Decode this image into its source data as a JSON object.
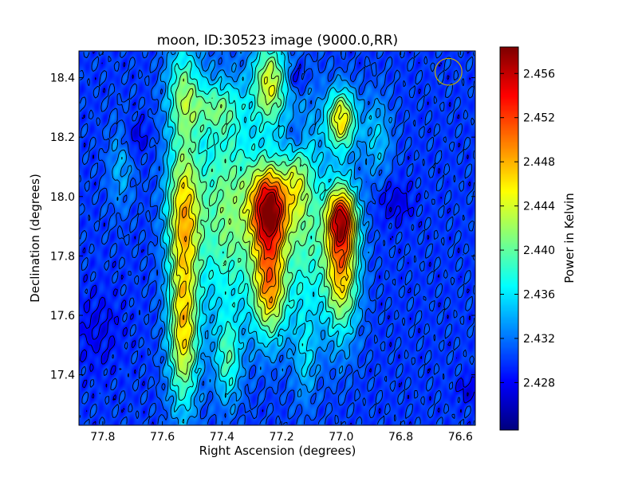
{
  "chart_data": {
    "type": "heatmap",
    "title": "moon, ID:30523 image (9000.0,RR)",
    "xlabel": "Right Ascension (degrees)",
    "ylabel": "Declination (degrees)",
    "colorbar_label": "Power in Kelvin",
    "xlim": [
      77.88,
      76.55
    ],
    "ylim": [
      17.23,
      18.49
    ],
    "x_axis_inverted": true,
    "x_ticks": [
      {
        "value": 77.8,
        "label": "77.8"
      },
      {
        "value": 77.6,
        "label": "77.6"
      },
      {
        "value": 77.4,
        "label": "77.4"
      },
      {
        "value": 77.2,
        "label": "77.2"
      },
      {
        "value": 77.0,
        "label": "77.0"
      },
      {
        "value": 76.8,
        "label": "76.8"
      },
      {
        "value": 76.6,
        "label": "76.6"
      }
    ],
    "y_ticks": [
      {
        "value": 17.4,
        "label": "17.4"
      },
      {
        "value": 17.6,
        "label": "17.6"
      },
      {
        "value": 17.8,
        "label": "17.8"
      },
      {
        "value": 18.0,
        "label": "18.0"
      },
      {
        "value": 18.2,
        "label": "18.2"
      },
      {
        "value": 18.4,
        "label": "18.4"
      }
    ],
    "colorbar": {
      "colormap": "jet",
      "range": [
        2.4237,
        2.4584
      ],
      "ticks": [
        {
          "value": 2.428,
          "label": "2.428"
        },
        {
          "value": 2.432,
          "label": "2.432"
        },
        {
          "value": 2.436,
          "label": "2.436"
        },
        {
          "value": 2.44,
          "label": "2.440"
        },
        {
          "value": 2.444,
          "label": "2.444"
        },
        {
          "value": 2.448,
          "label": "2.448"
        },
        {
          "value": 2.452,
          "label": "2.452"
        },
        {
          "value": 2.456,
          "label": "2.456"
        }
      ]
    },
    "background_value": 2.43,
    "features": [
      {
        "x": 77.24,
        "y": 17.96,
        "sx": 0.045,
        "sy": 0.1,
        "amp": 0.026
      },
      {
        "x": 77.24,
        "y": 17.7,
        "sx": 0.04,
        "sy": 0.12,
        "amp": 0.018
      },
      {
        "x": 77.24,
        "y": 18.38,
        "sx": 0.04,
        "sy": 0.1,
        "amp": 0.014
      },
      {
        "x": 77.0,
        "y": 17.78,
        "sx": 0.04,
        "sy": 0.16,
        "amp": 0.019
      },
      {
        "x": 77.0,
        "y": 17.93,
        "sx": 0.035,
        "sy": 0.07,
        "amp": 0.015
      },
      {
        "x": 77.0,
        "y": 18.26,
        "sx": 0.035,
        "sy": 0.07,
        "amp": 0.016
      },
      {
        "x": 77.53,
        "y": 17.95,
        "sx": 0.04,
        "sy": 0.16,
        "amp": 0.015
      },
      {
        "x": 77.53,
        "y": 17.55,
        "sx": 0.035,
        "sy": 0.18,
        "amp": 0.016
      },
      {
        "x": 77.53,
        "y": 18.35,
        "sx": 0.04,
        "sy": 0.12,
        "amp": 0.01
      },
      {
        "x": 77.38,
        "y": 17.95,
        "sx": 0.08,
        "sy": 0.25,
        "amp": 0.011
      },
      {
        "x": 77.38,
        "y": 17.45,
        "sx": 0.03,
        "sy": 0.1,
        "amp": 0.008
      },
      {
        "x": 77.12,
        "y": 17.9,
        "sx": 0.05,
        "sy": 0.25,
        "amp": 0.009
      },
      {
        "x": 77.12,
        "y": 17.45,
        "sx": 0.025,
        "sy": 0.1,
        "amp": 0.004
      },
      {
        "x": 77.42,
        "y": 18.3,
        "sx": 0.06,
        "sy": 0.06,
        "amp": 0.007
      },
      {
        "x": 77.15,
        "y": 18.05,
        "sx": 0.03,
        "sy": 0.08,
        "amp": 0.006
      },
      {
        "x": 76.88,
        "y": 18.2,
        "sx": 0.035,
        "sy": 0.1,
        "amp": 0.005
      },
      {
        "x": 77.74,
        "y": 18.1,
        "sx": 0.03,
        "sy": 0.1,
        "amp": 0.004
      },
      {
        "x": 77.82,
        "y": 17.55,
        "sx": 0.06,
        "sy": 0.1,
        "amp": -0.002
      },
      {
        "x": 76.82,
        "y": 17.98,
        "sx": 0.04,
        "sy": 0.05,
        "amp": -0.003
      },
      {
        "x": 77.15,
        "y": 18.4,
        "sx": 0.02,
        "sy": 0.03,
        "amp": -0.004
      },
      {
        "x": 77.15,
        "y": 18.2,
        "sx": 0.02,
        "sy": 0.04,
        "amp": -0.004
      },
      {
        "x": 77.69,
        "y": 18.2,
        "sx": 0.03,
        "sy": 0.04,
        "amp": -0.003
      },
      {
        "x": 76.57,
        "y": 17.35,
        "sx": 0.03,
        "sy": 0.03,
        "amp": -0.003
      }
    ],
    "contour_count": 14,
    "beam_marker": {
      "x": 76.64,
      "y": 18.42,
      "radius_deg": 0.045,
      "color": "#c8b400"
    },
    "grid": false
  }
}
